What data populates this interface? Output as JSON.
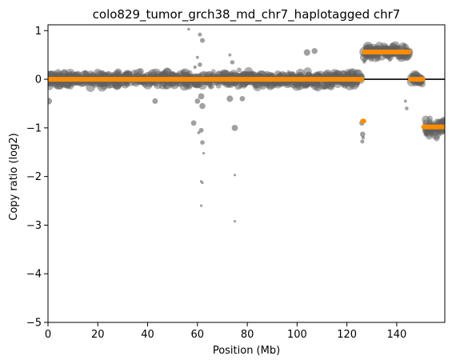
{
  "chart_data": {
    "type": "scatter",
    "title": "colo829_tumor_grch38_md_chr7_haplotagged chr7",
    "xlabel": "Position (Mb)",
    "ylabel": "Copy ratio (log2)",
    "xlim": [
      0,
      159.3
    ],
    "ylim": [
      -5,
      1.12
    ],
    "x_ticks": [
      0,
      20,
      40,
      60,
      80,
      100,
      120,
      140
    ],
    "y_ticks": [
      1,
      0,
      -1,
      -2,
      -3,
      -4,
      -5
    ],
    "y_tick_labels": [
      "1",
      "0",
      "−1",
      "−2",
      "−3",
      "−4",
      "−5"
    ],
    "grid": false,
    "legend": "none",
    "reference_line": {
      "y": 0,
      "color": "#000000"
    },
    "point_color": "#606060",
    "segment_color": "#ff8c00",
    "segments": [
      {
        "x_start": 0,
        "x_end": 126,
        "y": 0.0
      },
      {
        "x_start": 126.3,
        "x_end": 126.8,
        "y": -0.86
      },
      {
        "x_start": 126.9,
        "x_end": 145,
        "y": 0.56
      },
      {
        "x_start": 145.5,
        "x_end": 150.5,
        "y": 0.0
      },
      {
        "x_start": 150.8,
        "x_end": 159.3,
        "y": -0.98
      }
    ],
    "point_clusters": [
      {
        "x_start": 0,
        "x_end": 126,
        "y_center": 0.0,
        "y_spread": 0.12
      },
      {
        "x_start": 126.9,
        "x_end": 145,
        "y_center": 0.56,
        "y_spread": 0.12
      },
      {
        "x_start": 145.5,
        "x_end": 150.5,
        "y_center": 0.0,
        "y_spread": 0.1
      },
      {
        "x_start": 150.8,
        "x_end": 159.3,
        "y_center": -0.98,
        "y_spread": 0.14
      }
    ],
    "outliers": [
      {
        "x": 56.5,
        "y": 1.03
      },
      {
        "x": 61.0,
        "y": 0.92
      },
      {
        "x": 62.0,
        "y": 0.8
      },
      {
        "x": 60.0,
        "y": 0.45
      },
      {
        "x": 61.0,
        "y": 0.3
      },
      {
        "x": 59.0,
        "y": 0.25
      },
      {
        "x": 61.5,
        "y": -0.35
      },
      {
        "x": 60.0,
        "y": -0.45
      },
      {
        "x": 62.0,
        "y": -0.55
      },
      {
        "x": 58.5,
        "y": -0.9
      },
      {
        "x": 60.5,
        "y": -1.1
      },
      {
        "x": 61.5,
        "y": -1.05
      },
      {
        "x": 62.0,
        "y": -1.3
      },
      {
        "x": 62.5,
        "y": -1.52
      },
      {
        "x": 61.5,
        "y": -2.1
      },
      {
        "x": 62.0,
        "y": -2.13
      },
      {
        "x": 61.5,
        "y": -2.6
      },
      {
        "x": 75.0,
        "y": -1.0
      },
      {
        "x": 75.0,
        "y": -1.97
      },
      {
        "x": 75.0,
        "y": -2.92
      },
      {
        "x": 73.0,
        "y": 0.5
      },
      {
        "x": 74.0,
        "y": 0.35
      },
      {
        "x": 73.0,
        "y": -0.4
      },
      {
        "x": 78.0,
        "y": -0.4
      },
      {
        "x": 104.0,
        "y": 0.55
      },
      {
        "x": 107.0,
        "y": 0.58
      },
      {
        "x": 43.0,
        "y": -0.45
      },
      {
        "x": 126.0,
        "y": -0.9
      },
      {
        "x": 126.3,
        "y": -1.13
      },
      {
        "x": 126.5,
        "y": -1.2
      },
      {
        "x": 126.2,
        "y": -1.28
      },
      {
        "x": 127.0,
        "y": 0.36
      },
      {
        "x": 143.5,
        "y": -0.45
      },
      {
        "x": 144.0,
        "y": -0.6
      },
      {
        "x": 0.3,
        "y": -0.45
      }
    ]
  }
}
